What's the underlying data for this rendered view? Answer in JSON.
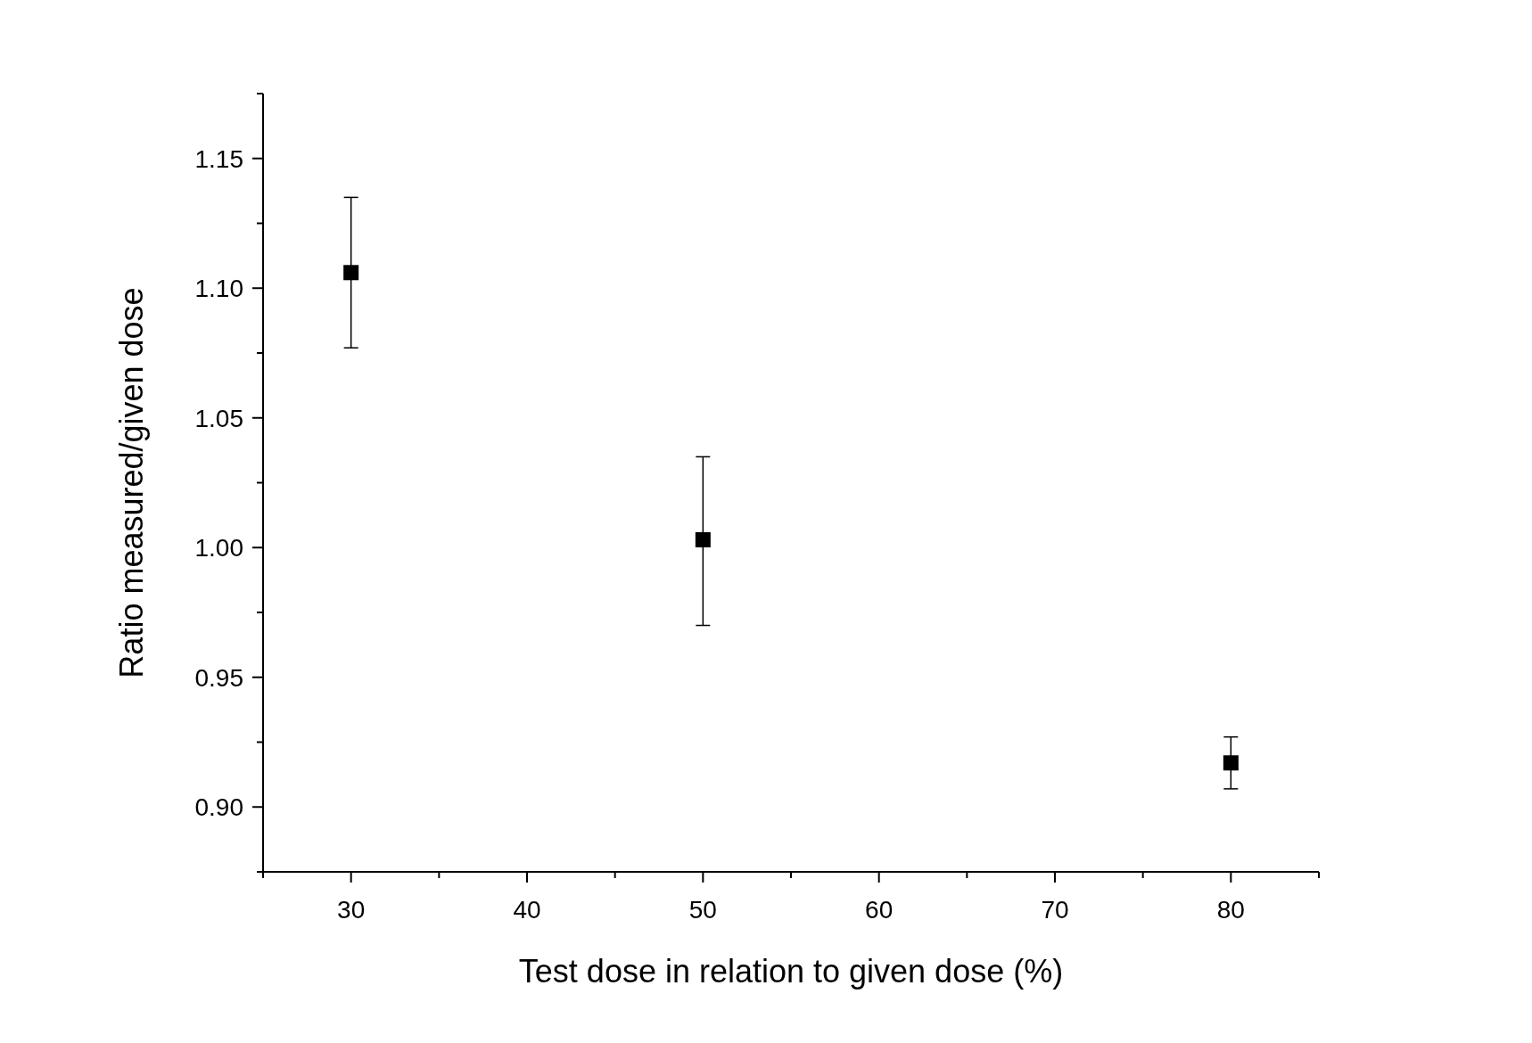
{
  "chart_data": {
    "type": "scatter",
    "xlabel": "Test dose in relation to given dose (%)",
    "ylabel": "Ratio measured/given dose",
    "x": [
      30,
      50,
      80
    ],
    "values": [
      1.106,
      1.003,
      0.917
    ],
    "errors": [
      [
        1.077,
        1.135
      ],
      [
        0.97,
        1.035
      ],
      [
        0.907,
        0.927
      ]
    ],
    "color": "#000000",
    "marker": "square",
    "xlim": [
      25,
      85
    ],
    "ylim": [
      0.875,
      1.175
    ],
    "xticks": [
      {
        "value": 25,
        "label": null
      },
      30,
      {
        "value": 35,
        "label": null
      },
      40,
      {
        "value": 45,
        "label": null
      },
      50,
      {
        "value": 55,
        "label": null
      },
      60,
      {
        "value": 65,
        "label": null
      },
      70,
      {
        "value": 75,
        "label": null
      },
      80,
      {
        "value": 85,
        "label": null
      }
    ],
    "yticks": [
      {
        "value": 0.875,
        "label": null
      },
      {
        "value": 0.9,
        "label": "0.90"
      },
      {
        "value": 0.925,
        "label": null
      },
      {
        "value": 0.95,
        "label": "0.95"
      },
      {
        "value": 0.975,
        "label": null
      },
      {
        "value": 1.0,
        "label": "1.00"
      },
      {
        "value": 1.025,
        "label": null
      },
      {
        "value": 1.05,
        "label": "1.05"
      },
      {
        "value": 1.075,
        "label": null
      },
      {
        "value": 1.1,
        "label": "1.10"
      },
      {
        "value": 1.125,
        "label": null
      },
      {
        "value": 1.15,
        "label": "1.15"
      },
      {
        "value": 1.175,
        "label": null
      }
    ],
    "grid": false
  }
}
